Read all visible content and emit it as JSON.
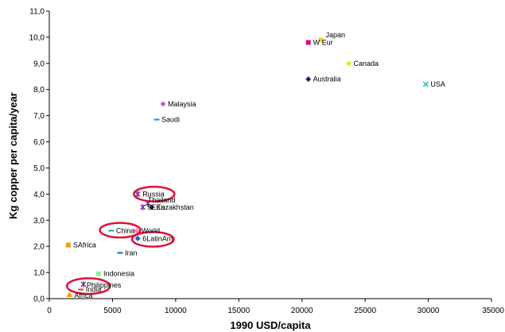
{
  "chart_data": {
    "type": "scatter",
    "xlabel": "1990 USD/capita",
    "ylabel": "Kg copper per capita/year",
    "xlim": [
      0,
      35000
    ],
    "ylim": [
      0,
      11
    ],
    "x_ticks": [
      0,
      5000,
      10000,
      15000,
      20000,
      25000,
      30000,
      35000
    ],
    "x_tick_labels": [
      "0",
      "5000",
      "10000",
      "15000",
      "20000",
      "25000",
      "30000",
      "35000"
    ],
    "y_ticks": [
      0,
      1,
      2,
      3,
      4,
      5,
      6,
      7,
      8,
      9,
      10,
      11
    ],
    "y_tick_labels": [
      "0,0",
      "1,0",
      "2,0",
      "3,0",
      "4,0",
      "5,0",
      "6,0",
      "7,0",
      "8,0",
      "9,0",
      "10,0",
      "11,0"
    ],
    "grid": false,
    "points": [
      {
        "label": "Japan",
        "x": 21500,
        "y": 9.9,
        "color": "#e6d93a",
        "marker": "square",
        "label_dx": 6,
        "label_dy": -3
      },
      {
        "label": "W Eur",
        "x": 20500,
        "y": 9.8,
        "color": "#e6007e",
        "marker": "square",
        "label_dx": 6,
        "label_dy": 3
      },
      {
        "label": "Canada",
        "x": 23700,
        "y": 9.0,
        "color": "#f2e600",
        "marker": "diamond",
        "label_dx": 6,
        "label_dy": 3
      },
      {
        "label": "Australia",
        "x": 20500,
        "y": 8.4,
        "color": "#1f1f6e",
        "marker": "diamond",
        "label_dx": 6,
        "label_dy": 3
      },
      {
        "label": "USA",
        "x": 29800,
        "y": 8.2,
        "color": "#00c0c0",
        "marker": "cross",
        "label_dx": 6,
        "label_dy": 3
      },
      {
        "label": "Malaysia",
        "x": 9000,
        "y": 7.45,
        "color": "#c060c0",
        "marker": "diamond",
        "label_dx": 6,
        "label_dy": 3
      },
      {
        "label": "Saudi",
        "x": 8500,
        "y": 6.85,
        "color": "#00a0c0",
        "marker": "dash",
        "label_dx": 6,
        "label_dy": 3
      },
      {
        "label": "Russia",
        "x": 7000,
        "y": 4.0,
        "color": "#6e2f9e",
        "marker": "star",
        "label_dx": 6,
        "label_dy": 3
      },
      {
        "label": "Thailand",
        "x": 7800,
        "y": 3.65,
        "color": "#6e2f9e",
        "marker": "star",
        "label_dx": 0,
        "label_dy": -1
      },
      {
        "label": "Kazakhstan",
        "x": 8100,
        "y": 3.5,
        "color": "#1f1f6e",
        "marker": "diamond",
        "label_dx": 6,
        "label_dy": 3
      },
      {
        "label": "5EEu",
        "x": 7400,
        "y": 3.5,
        "color": "#6e2f9e",
        "marker": "star",
        "label_dx": 6,
        "label_dy": 3
      },
      {
        "label": "World",
        "x": 6900,
        "y": 2.6,
        "color": "#ff80c0",
        "marker": "diamond",
        "label_dx": 6,
        "label_dy": 3
      },
      {
        "label": "China",
        "x": 4900,
        "y": 2.6,
        "color": "#00b0b0",
        "marker": "dash",
        "label_dx": 6,
        "label_dy": 3
      },
      {
        "label": "6LatinAm",
        "x": 7000,
        "y": 2.3,
        "color": "#0070c0",
        "marker": "diamond",
        "label_dx": 6,
        "label_dy": 3
      },
      {
        "label": "SAfrica",
        "x": 1500,
        "y": 2.05,
        "color": "#f2a000",
        "marker": "square",
        "label_dx": 6,
        "label_dy": 3
      },
      {
        "label": "Iran",
        "x": 5600,
        "y": 1.75,
        "color": "#0070c0",
        "marker": "dash",
        "label_dx": 6,
        "label_dy": 3
      },
      {
        "label": "Indonesia",
        "x": 3900,
        "y": 0.95,
        "color": "#90ee90",
        "marker": "square",
        "label_dx": 6,
        "label_dy": 3
      },
      {
        "label": "Philippines",
        "x": 2700,
        "y": 0.55,
        "color": "#6e2f9e",
        "marker": "star",
        "label_dx": 4,
        "label_dy": 4
      },
      {
        "label": "India",
        "x": 2500,
        "y": 0.35,
        "color": "#c05020",
        "marker": "dash",
        "label_dx": 6,
        "label_dy": 3
      },
      {
        "label": "Africa",
        "x": 1600,
        "y": 0.15,
        "color": "#f2a000",
        "marker": "triangle",
        "label_dx": 6,
        "label_dy": 4
      }
    ],
    "highlight_circles": [
      {
        "cx": 8300,
        "cy": 4.0,
        "rx": 1600,
        "ry": 0.28
      },
      {
        "cx": 5600,
        "cy": 2.62,
        "rx": 1600,
        "ry": 0.28
      },
      {
        "cx": 8200,
        "cy": 2.27,
        "rx": 1650,
        "ry": 0.28
      },
      {
        "cx": 3100,
        "cy": 0.48,
        "rx": 1700,
        "ry": 0.3
      }
    ],
    "highlight_color": "#e0103a"
  }
}
